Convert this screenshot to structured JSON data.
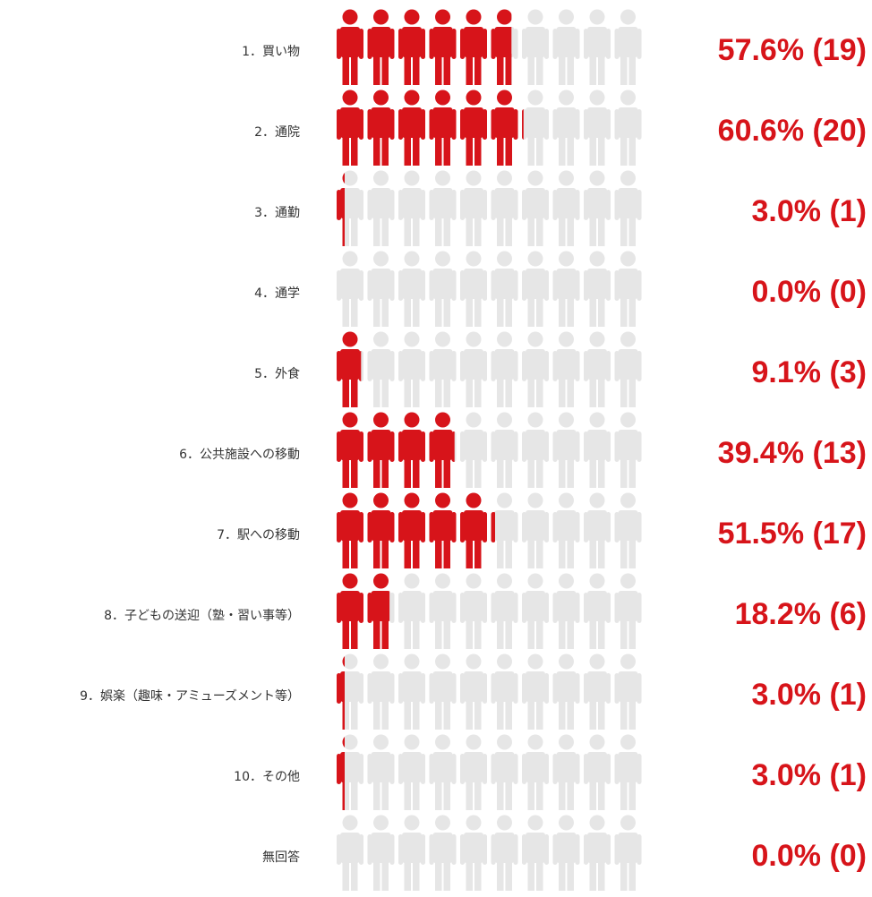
{
  "chart_data": {
    "type": "pictograph",
    "categories": [
      "1．買い物",
      "2．通院",
      "3．通勤",
      "4．通学",
      "5．外食",
      "6．公共施設への移動",
      "7．駅への移動",
      "8．子どもの送迎（塾・習い事等）",
      "9．娯楽（趣味・アミューズメント等）",
      "10．その他",
      "無回答"
    ],
    "values": [
      57.6,
      60.6,
      3.0,
      0.0,
      9.1,
      39.4,
      51.5,
      18.2,
      3.0,
      3.0,
      0.0
    ],
    "value_labels": [
      "57.6% (19)",
      "60.6% (20)",
      "3.0% (1)",
      "0.0% (0)",
      "9.1% (3)",
      "39.4% (13)",
      "51.5% (17)",
      "18.2% (6)",
      "3.0% (1)",
      "3.0% (1)",
      "0.0% (0)"
    ],
    "color": "#d7141a",
    "empty_color": "#e6e6e6",
    "xlim": [
      0,
      100
    ]
  }
}
